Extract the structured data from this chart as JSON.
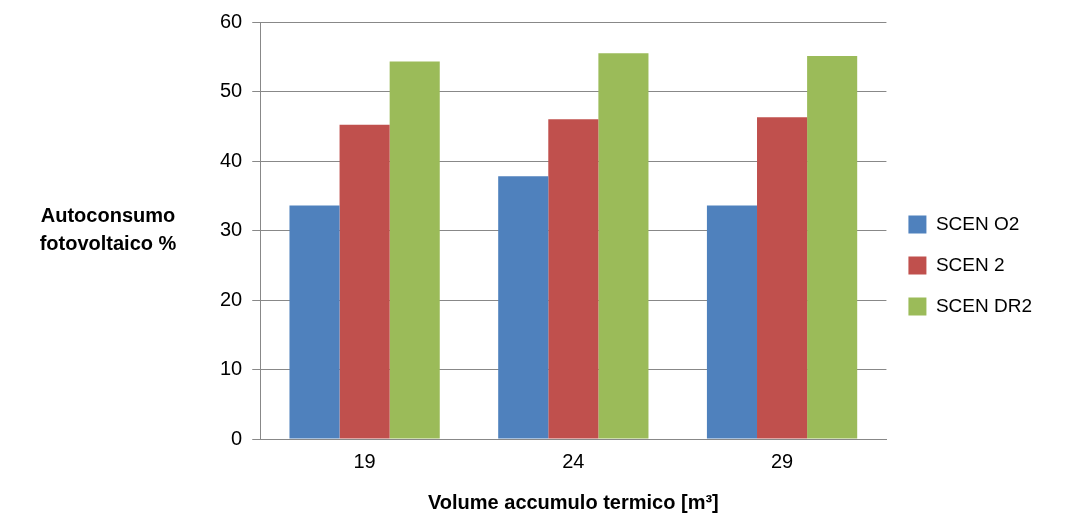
{
  "chart_data": {
    "type": "bar",
    "xlabel": "Volume accumulo termico [m³]",
    "ylabel": "Autoconsumo fotovoltaico %",
    "categories": [
      "19",
      "24",
      "29"
    ],
    "series": [
      {
        "name": "SCEN O2",
        "color": "#4f81bd",
        "values": [
          33.6,
          37.8,
          33.6
        ]
      },
      {
        "name": "SCEN 2",
        "color": "#c0504d",
        "values": [
          45.2,
          46.0,
          46.3
        ]
      },
      {
        "name": "SCEN DR2",
        "color": "#9bbb59",
        "values": [
          54.3,
          55.5,
          55.1
        ]
      }
    ],
    "ylim": [
      0,
      60
    ],
    "yticks": [
      0,
      10,
      20,
      30,
      40,
      50,
      60
    ],
    "grid": "y",
    "legend": "right"
  }
}
